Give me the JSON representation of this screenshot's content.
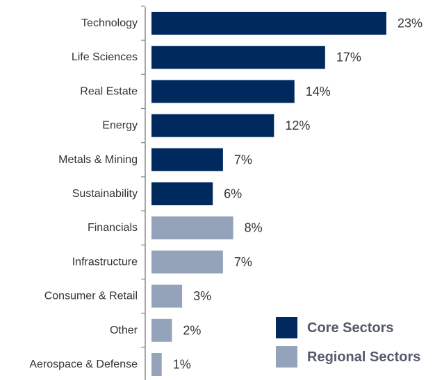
{
  "chart_data": {
    "type": "bar",
    "orientation": "horizontal",
    "categories": [
      "Technology",
      "Life Sciences",
      "Real Estate",
      "Energy",
      "Metals & Mining",
      "Sustainability",
      "Financials",
      "Infrastructure",
      "Consumer & Retail",
      "Other",
      "Aerospace & Defense"
    ],
    "values": [
      23,
      17,
      14,
      12,
      7,
      6,
      8,
      7,
      3,
      2,
      1
    ],
    "value_labels": [
      "23%",
      "17%",
      "14%",
      "12%",
      "7%",
      "6%",
      "8%",
      "7%",
      "3%",
      "2%",
      "1%"
    ],
    "groups": [
      "core",
      "core",
      "core",
      "core",
      "core",
      "core",
      "regional",
      "regional",
      "regional",
      "regional",
      "regional"
    ],
    "series": [
      {
        "key": "core",
        "name": "Core Sectors",
        "color": "#00295e"
      },
      {
        "key": "regional",
        "name": "Regional Sectors",
        "color": "#94a2ba"
      }
    ],
    "xlim": [
      0,
      23
    ],
    "grid": false,
    "legend_position": "bottom-right"
  }
}
